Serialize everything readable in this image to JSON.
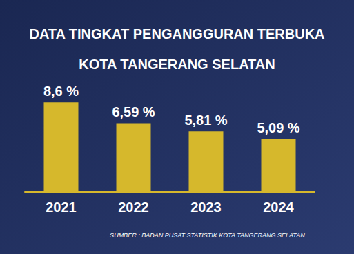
{
  "chart_data": {
    "type": "bar",
    "title": "DATA TINGKAT PENGANGGURAN TERBUKA\nKOTA TANGERANG SELATAN",
    "source": "SUMBER : BADAN PUSAT STATISTIK KOTA TANGERANG SELATAN",
    "categories": [
      "2021",
      "2022",
      "2023",
      "2024"
    ],
    "values": [
      8.6,
      6.59,
      5.81,
      5.09
    ],
    "value_labels": [
      "8,6 %",
      "6,59 %",
      "5,81 %",
      "5,09 %"
    ],
    "color": "#d6b82c",
    "ylim": [
      0,
      10
    ],
    "grid": false,
    "data_labels": true,
    "tick_labels": "x"
  }
}
